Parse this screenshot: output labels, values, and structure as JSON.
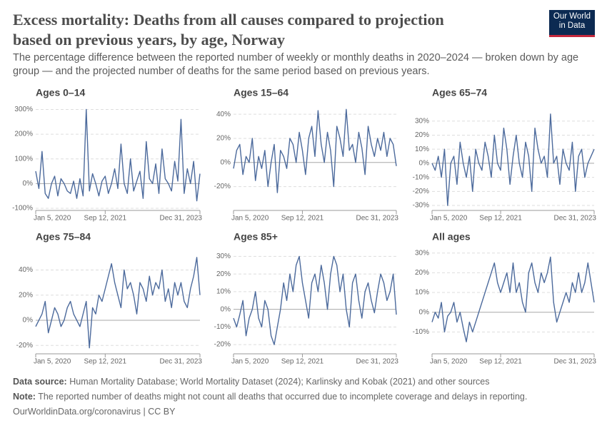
{
  "title": "Excess mortality: Deaths from all causes compared to projection based on previous years, by age, Norway",
  "subtitle": "The percentage difference between the reported number of weekly or monthly deaths in 2020–2024 — broken down by age group — and the projected number of deaths for the same period based on previous years.",
  "logo": {
    "line1": "Our World",
    "line2": "in Data"
  },
  "footer": {
    "source_label": "Data source:",
    "source": "Human Mortality Database; World Mortality Dataset (2024); Karlinsky and Kobak (2021) and other sources",
    "note_label": "Note:",
    "note": "The reported number of deaths might not count all deaths that occurred due to incomplete coverage and delays in reporting.",
    "credit": "OurWorldinData.org/coronavirus | CC BY"
  },
  "chart_data": [
    {
      "type": "line",
      "title": "Ages 0–14",
      "color": "#4c6a9c",
      "grid": true,
      "x": [
        "2020-01-05",
        "2020-02-02",
        "2020-03-01",
        "2020-03-29",
        "2020-04-26",
        "2020-05-24",
        "2020-06-21",
        "2020-07-19",
        "2020-08-16",
        "2020-09-13",
        "2020-10-11",
        "2020-11-08",
        "2020-12-06",
        "2021-01-03",
        "2021-01-31",
        "2021-02-28",
        "2021-03-28",
        "2021-04-25",
        "2021-05-23",
        "2021-06-20",
        "2021-07-18",
        "2021-08-15",
        "2021-09-12",
        "2021-10-10",
        "2021-11-07",
        "2021-12-05",
        "2022-01-02",
        "2022-01-30",
        "2022-02-27",
        "2022-03-27",
        "2022-04-24",
        "2022-05-22",
        "2022-06-19",
        "2022-07-17",
        "2022-08-14",
        "2022-09-11",
        "2022-10-09",
        "2022-11-06",
        "2022-12-04",
        "2023-01-01",
        "2023-01-29",
        "2023-02-26",
        "2023-03-26",
        "2023-04-23",
        "2023-05-21",
        "2023-06-18",
        "2023-07-16",
        "2023-08-13",
        "2023-09-10",
        "2023-10-08",
        "2023-11-05",
        "2023-12-03",
        "2023-12-31"
      ],
      "values": [
        50,
        -20,
        130,
        -40,
        -60,
        0,
        30,
        -50,
        20,
        0,
        -30,
        -40,
        10,
        -60,
        20,
        -50,
        300,
        -30,
        40,
        0,
        -50,
        10,
        30,
        -40,
        0,
        60,
        -20,
        160,
        0,
        -40,
        100,
        -30,
        10,
        50,
        -60,
        170,
        20,
        0,
        80,
        -40,
        140,
        20,
        0,
        -30,
        90,
        10,
        260,
        -40,
        60,
        0,
        90,
        -70,
        40
      ],
      "ylim": [
        -100,
        310
      ],
      "yticks": [
        {
          "value": -100,
          "label": "-100%"
        },
        {
          "value": 0,
          "label": "0%"
        },
        {
          "value": 100,
          "label": "100%"
        },
        {
          "value": 200,
          "label": "200%"
        },
        {
          "value": 300,
          "label": "300%"
        }
      ],
      "xticks": [
        {
          "value": "2020-01-05",
          "label": "Jan 5, 2020"
        },
        {
          "value": "2021-09-12",
          "label": "Sep 12, 2021"
        },
        {
          "value": "2023-12-31",
          "label": "Dec 31, 2023"
        }
      ]
    },
    {
      "type": "line",
      "title": "Ages 15–64",
      "color": "#4c6a9c",
      "grid": true,
      "x": [
        "2020-01-05",
        "2020-02-02",
        "2020-03-01",
        "2020-03-29",
        "2020-04-26",
        "2020-05-24",
        "2020-06-21",
        "2020-07-19",
        "2020-08-16",
        "2020-09-13",
        "2020-10-11",
        "2020-11-08",
        "2020-12-06",
        "2021-01-03",
        "2021-01-31",
        "2021-02-28",
        "2021-03-28",
        "2021-04-25",
        "2021-05-23",
        "2021-06-20",
        "2021-07-18",
        "2021-08-15",
        "2021-09-12",
        "2021-10-10",
        "2021-11-07",
        "2021-12-05",
        "2022-01-02",
        "2022-01-30",
        "2022-02-27",
        "2022-03-27",
        "2022-04-24",
        "2022-05-22",
        "2022-06-19",
        "2022-07-17",
        "2022-08-14",
        "2022-09-11",
        "2022-10-09",
        "2022-11-06",
        "2022-12-04",
        "2023-01-01",
        "2023-01-29",
        "2023-02-26",
        "2023-03-26",
        "2023-04-23",
        "2023-05-21",
        "2023-06-18",
        "2023-07-16",
        "2023-08-13",
        "2023-09-10",
        "2023-10-08",
        "2023-11-05",
        "2023-12-03",
        "2023-12-31"
      ],
      "values": [
        -5,
        10,
        15,
        -10,
        5,
        0,
        20,
        -15,
        5,
        -5,
        10,
        -20,
        0,
        15,
        -25,
        10,
        5,
        -5,
        20,
        15,
        0,
        25,
        10,
        -10,
        20,
        30,
        5,
        43,
        15,
        0,
        25,
        10,
        -20,
        30,
        20,
        5,
        44,
        10,
        15,
        0,
        25,
        12,
        -10,
        30,
        15,
        5,
        20,
        10,
        25,
        5,
        20,
        15,
        -3
      ],
      "ylim": [
        -38,
        46
      ],
      "yticks": [
        {
          "value": -20,
          "label": "-20%"
        },
        {
          "value": 0,
          "label": "0%"
        },
        {
          "value": 20,
          "label": "20%"
        },
        {
          "value": 40,
          "label": "40%"
        }
      ],
      "xticks": [
        {
          "value": "2020-01-05",
          "label": "Jan 5, 2020"
        },
        {
          "value": "2021-09-12",
          "label": "Sep 12, 2021"
        },
        {
          "value": "2023-12-31",
          "label": "Dec 31, 2023"
        }
      ]
    },
    {
      "type": "line",
      "title": "Ages 65–74",
      "color": "#4c6a9c",
      "grid": true,
      "x": [
        "2020-01-05",
        "2020-02-02",
        "2020-03-01",
        "2020-03-29",
        "2020-04-26",
        "2020-05-24",
        "2020-06-21",
        "2020-07-19",
        "2020-08-16",
        "2020-09-13",
        "2020-10-11",
        "2020-11-08",
        "2020-12-06",
        "2021-01-03",
        "2021-01-31",
        "2021-02-28",
        "2021-03-28",
        "2021-04-25",
        "2021-05-23",
        "2021-06-20",
        "2021-07-18",
        "2021-08-15",
        "2021-09-12",
        "2021-10-10",
        "2021-11-07",
        "2021-12-05",
        "2022-01-02",
        "2022-01-30",
        "2022-02-27",
        "2022-03-27",
        "2022-04-24",
        "2022-05-22",
        "2022-06-19",
        "2022-07-17",
        "2022-08-14",
        "2022-09-11",
        "2022-10-09",
        "2022-11-06",
        "2022-12-04",
        "2023-01-01",
        "2023-01-29",
        "2023-02-26",
        "2023-03-26",
        "2023-04-23",
        "2023-05-21",
        "2023-06-18",
        "2023-07-16",
        "2023-08-13",
        "2023-09-10",
        "2023-10-08",
        "2023-11-05",
        "2023-12-03",
        "2023-12-31"
      ],
      "values": [
        0,
        -5,
        5,
        -10,
        10,
        -30,
        0,
        5,
        -15,
        15,
        0,
        -10,
        5,
        -20,
        10,
        0,
        -5,
        15,
        5,
        -10,
        20,
        0,
        -5,
        25,
        10,
        -15,
        5,
        20,
        0,
        -10,
        15,
        5,
        -20,
        25,
        10,
        0,
        5,
        -10,
        35,
        0,
        5,
        -15,
        10,
        0,
        -5,
        15,
        -20,
        5,
        10,
        -10,
        0,
        5,
        10
      ],
      "ylim": [
        -32,
        40
      ],
      "yticks": [
        {
          "value": -30,
          "label": "-30%"
        },
        {
          "value": -20,
          "label": "-20%"
        },
        {
          "value": -10,
          "label": "-10%"
        },
        {
          "value": 0,
          "label": "0%"
        },
        {
          "value": 10,
          "label": "10%"
        },
        {
          "value": 20,
          "label": "20%"
        },
        {
          "value": 30,
          "label": "30%"
        }
      ],
      "xticks": [
        {
          "value": "2020-01-05",
          "label": "Jan 5, 2020"
        },
        {
          "value": "2021-09-12",
          "label": "Sep 12, 2021"
        },
        {
          "value": "2023-12-31",
          "label": "Dec 31, 2023"
        }
      ]
    },
    {
      "type": "line",
      "title": "Ages 75–84",
      "color": "#4c6a9c",
      "grid": true,
      "x": [
        "2020-01-05",
        "2020-02-02",
        "2020-03-01",
        "2020-03-29",
        "2020-04-26",
        "2020-05-24",
        "2020-06-21",
        "2020-07-19",
        "2020-08-16",
        "2020-09-13",
        "2020-10-11",
        "2020-11-08",
        "2020-12-06",
        "2021-01-03",
        "2021-01-31",
        "2021-02-28",
        "2021-03-28",
        "2021-04-25",
        "2021-05-23",
        "2021-06-20",
        "2021-07-18",
        "2021-08-15",
        "2021-09-12",
        "2021-10-10",
        "2021-11-07",
        "2021-12-05",
        "2022-01-02",
        "2022-01-30",
        "2022-02-27",
        "2022-03-27",
        "2022-04-24",
        "2022-05-22",
        "2022-06-19",
        "2022-07-17",
        "2022-08-14",
        "2022-09-11",
        "2022-10-09",
        "2022-11-06",
        "2022-12-04",
        "2023-01-01",
        "2023-01-29",
        "2023-02-26",
        "2023-03-26",
        "2023-04-23",
        "2023-05-21",
        "2023-06-18",
        "2023-07-16",
        "2023-08-13",
        "2023-09-10",
        "2023-10-08",
        "2023-11-05",
        "2023-12-03",
        "2023-12-31"
      ],
      "values": [
        -5,
        0,
        5,
        15,
        -10,
        0,
        10,
        5,
        -5,
        0,
        10,
        15,
        5,
        0,
        -5,
        5,
        15,
        -22,
        10,
        5,
        20,
        15,
        25,
        35,
        45,
        30,
        20,
        10,
        40,
        25,
        30,
        20,
        5,
        30,
        25,
        15,
        35,
        20,
        30,
        25,
        40,
        15,
        25,
        10,
        30,
        20,
        30,
        15,
        10,
        25,
        35,
        50,
        20
      ],
      "ylim": [
        -25,
        55
      ],
      "yticks": [
        {
          "value": -20,
          "label": "-20%"
        },
        {
          "value": 0,
          "label": "0%"
        },
        {
          "value": 20,
          "label": "20%"
        },
        {
          "value": 40,
          "label": "40%"
        }
      ],
      "xticks": [
        {
          "value": "2020-01-05",
          "label": "Jan 5, 2020"
        },
        {
          "value": "2021-09-12",
          "label": "Sep 12, 2021"
        },
        {
          "value": "2023-12-31",
          "label": "Dec 31, 2023"
        }
      ]
    },
    {
      "type": "line",
      "title": "Ages 85+",
      "color": "#4c6a9c",
      "grid": true,
      "x": [
        "2020-01-05",
        "2020-02-02",
        "2020-03-01",
        "2020-03-29",
        "2020-04-26",
        "2020-05-24",
        "2020-06-21",
        "2020-07-19",
        "2020-08-16",
        "2020-09-13",
        "2020-10-11",
        "2020-11-08",
        "2020-12-06",
        "2021-01-03",
        "2021-01-31",
        "2021-02-28",
        "2021-03-28",
        "2021-04-25",
        "2021-05-23",
        "2021-06-20",
        "2021-07-18",
        "2021-08-15",
        "2021-09-12",
        "2021-10-10",
        "2021-11-07",
        "2021-12-05",
        "2022-01-02",
        "2022-01-30",
        "2022-02-27",
        "2022-03-27",
        "2022-04-24",
        "2022-05-22",
        "2022-06-19",
        "2022-07-17",
        "2022-08-14",
        "2022-09-11",
        "2022-10-09",
        "2022-11-06",
        "2022-12-04",
        "2023-01-01",
        "2023-01-29",
        "2023-02-26",
        "2023-03-26",
        "2023-04-23",
        "2023-05-21",
        "2023-06-18",
        "2023-07-16",
        "2023-08-13",
        "2023-09-10",
        "2023-10-08",
        "2023-11-05",
        "2023-12-03",
        "2023-12-31"
      ],
      "values": [
        -5,
        -10,
        -3,
        5,
        -15,
        -5,
        0,
        10,
        -5,
        -10,
        5,
        0,
        -15,
        -20,
        -10,
        0,
        15,
        5,
        20,
        10,
        25,
        30,
        15,
        5,
        -5,
        15,
        20,
        10,
        25,
        15,
        0,
        20,
        30,
        25,
        10,
        20,
        0,
        -10,
        15,
        20,
        5,
        -5,
        10,
        15,
        5,
        -2,
        10,
        20,
        15,
        5,
        10,
        20,
        -3
      ],
      "ylim": [
        -24,
        33
      ],
      "yticks": [
        {
          "value": -20,
          "label": "-20%"
        },
        {
          "value": -10,
          "label": "-10%"
        },
        {
          "value": 0,
          "label": "0%"
        },
        {
          "value": 10,
          "label": "10%"
        },
        {
          "value": 20,
          "label": "20%"
        },
        {
          "value": 30,
          "label": "30%"
        }
      ],
      "xticks": [
        {
          "value": "2020-01-05",
          "label": "Jan 5, 2020"
        },
        {
          "value": "2021-09-12",
          "label": "Sep 12, 2021"
        },
        {
          "value": "2023-12-31",
          "label": "Dec 31, 2023"
        }
      ]
    },
    {
      "type": "line",
      "title": "All ages",
      "color": "#4c6a9c",
      "grid": true,
      "x": [
        "2020-01-05",
        "2020-02-02",
        "2020-03-01",
        "2020-03-29",
        "2020-04-26",
        "2020-05-24",
        "2020-06-21",
        "2020-07-19",
        "2020-08-16",
        "2020-09-13",
        "2020-10-11",
        "2020-11-08",
        "2020-12-06",
        "2021-01-03",
        "2021-01-31",
        "2021-02-28",
        "2021-03-28",
        "2021-04-25",
        "2021-05-23",
        "2021-06-20",
        "2021-07-18",
        "2021-08-15",
        "2021-09-12",
        "2021-10-10",
        "2021-11-07",
        "2021-12-05",
        "2022-01-02",
        "2022-01-30",
        "2022-02-27",
        "2022-03-27",
        "2022-04-24",
        "2022-05-22",
        "2022-06-19",
        "2022-07-17",
        "2022-08-14",
        "2022-09-11",
        "2022-10-09",
        "2022-11-06",
        "2022-12-04",
        "2023-01-01",
        "2023-01-29",
        "2023-02-26",
        "2023-03-26",
        "2023-04-23",
        "2023-05-21",
        "2023-06-18",
        "2023-07-16",
        "2023-08-13",
        "2023-09-10",
        "2023-10-08",
        "2023-11-05",
        "2023-12-03",
        "2023-12-31"
      ],
      "values": [
        -5,
        0,
        -3,
        5,
        -10,
        -2,
        0,
        5,
        -5,
        0,
        -8,
        -15,
        -5,
        -10,
        -5,
        0,
        5,
        10,
        15,
        20,
        25,
        15,
        10,
        15,
        20,
        10,
        25,
        10,
        15,
        5,
        0,
        20,
        25,
        15,
        10,
        20,
        15,
        20,
        28,
        5,
        -5,
        0,
        5,
        10,
        5,
        15,
        10,
        20,
        10,
        15,
        25,
        15,
        5
      ],
      "ylim": [
        -20,
        31
      ],
      "yticks": [
        {
          "value": -10,
          "label": "-10%"
        },
        {
          "value": 0,
          "label": "0%"
        },
        {
          "value": 10,
          "label": "10%"
        },
        {
          "value": 20,
          "label": "20%"
        },
        {
          "value": 30,
          "label": "30%"
        }
      ],
      "xticks": [
        {
          "value": "2020-01-05",
          "label": "Jan 5, 2020"
        },
        {
          "value": "2021-09-12",
          "label": "Sep 12, 2021"
        },
        {
          "value": "2023-12-31",
          "label": "Dec 31, 2023"
        }
      ]
    }
  ]
}
